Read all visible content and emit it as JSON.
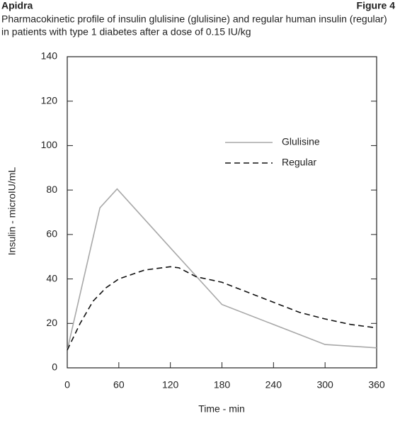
{
  "chart_data": {
    "type": "line",
    "brand": "Apidra",
    "figure_label": "Figure 4",
    "subtitle": [
      "Pharmacokinetic profile of insulin glulisine (glulisine) and regular human insulin (regular)",
      "in patients with type 1 diabetes after a dose of 0.15 IU/kg"
    ],
    "xlabel": "Time - min",
    "ylabel": "Insulin - microIU/mL",
    "xlim": [
      0,
      360
    ],
    "xticks": [
      0,
      60,
      120,
      180,
      240,
      300,
      360
    ],
    "ylim": [
      0,
      140
    ],
    "yticks": [
      0,
      20,
      40,
      60,
      80,
      100,
      120,
      140
    ],
    "grid": false,
    "series": [
      {
        "name": "Glulisine",
        "color": "#a8a8a8",
        "style": "solid",
        "x": [
          0,
          38,
          58,
          120,
          180,
          300,
          360
        ],
        "values": [
          8,
          72,
          80.5,
          54,
          28.5,
          10.5,
          9
        ]
      },
      {
        "name": "Regular",
        "color": "#111111",
        "style": "dashed",
        "x": [
          0,
          15,
          30,
          45,
          60,
          90,
          120,
          130,
          150,
          180,
          210,
          240,
          270,
          300,
          330,
          360
        ],
        "values": [
          8,
          20,
          30,
          36,
          40,
          44,
          45.5,
          45,
          41,
          38.5,
          34,
          29.5,
          25,
          22,
          19.5,
          18
        ]
      }
    ]
  }
}
